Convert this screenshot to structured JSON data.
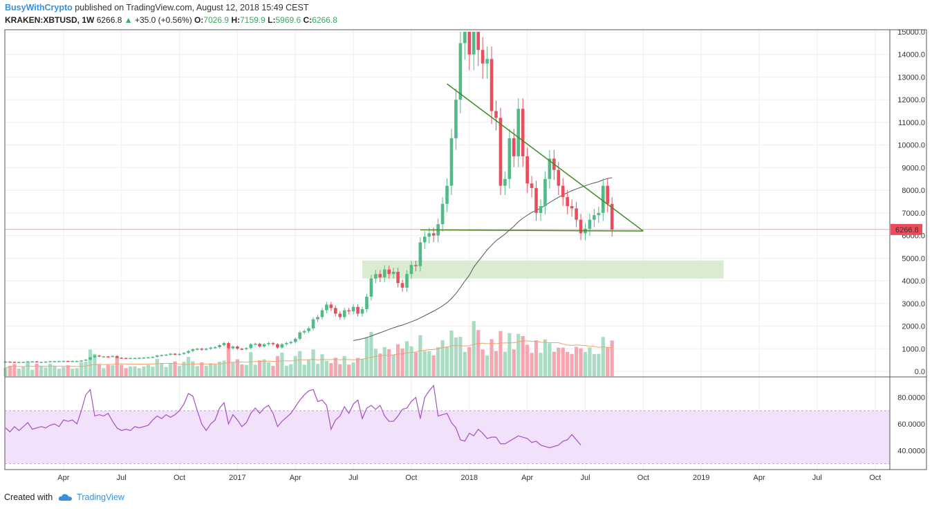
{
  "header": {
    "author": "BusyWithCrypto",
    "published": " published on TradingView.com, August 12, 2018 15:49 CEST",
    "symbol": "KRAKEN:XBTUSD, 1W",
    "last": "6266.8",
    "up_arrow": "▲",
    "change": "+35.0 (+0.56%)",
    "o_label": "O:",
    "o": "7026.9",
    "h_label": "H:",
    "h": "7159.9",
    "l_label": "L:",
    "l": "5969.6",
    "c_label": "C:",
    "c": "6266.8"
  },
  "footer": {
    "created_with": "Created with",
    "brand": "TradingView",
    "brand_icon": "cloud-icon"
  },
  "colors": {
    "up": "#53b987",
    "down": "#eb4d5c",
    "volume_up": "#a9dcc3",
    "volume_down": "#f5a6ae",
    "trendline": "#3c8c1c",
    "zone": "#d9ecd1",
    "rsi": "#a64ec2",
    "rsi_band": "#f2e1fa",
    "ma_long": "#555555",
    "ma_volume": "#f0a070",
    "price_line": "#eb4d5c"
  },
  "chart_data": {
    "type": "candlestick",
    "interval": "1W",
    "y_ticks": [
      "15000.0",
      "14000.0",
      "13000.0",
      "12000.0",
      "11000.0",
      "10000.0",
      "9000.0",
      "8000.0",
      "7000.0",
      "6000.0",
      "5000.0",
      "4000.0",
      "3000.0",
      "2000.0",
      "1000.0",
      "0.0"
    ],
    "y_tick_values": [
      15000,
      14000,
      13000,
      12000,
      11000,
      10000,
      9000,
      8000,
      7000,
      6000,
      5000,
      4000,
      3000,
      2000,
      1000,
      0
    ],
    "ylim": [
      -200,
      15100
    ],
    "last_price_label": "6266.8",
    "last_price": 6266.8,
    "x_tick_labels": [
      "Apr",
      "Jul",
      "Oct",
      "2017",
      "Apr",
      "Jul",
      "Oct",
      "2018",
      "Apr",
      "Jul",
      "Oct",
      "2019",
      "Apr",
      "Jul",
      "Oct"
    ],
    "x_tick_weeks": [
      13,
      26,
      39,
      52,
      65,
      78,
      91,
      104,
      117,
      130,
      143,
      156,
      169,
      182,
      195
    ],
    "candles": [
      [
        6.6,
        4,
        3,
        4,
        0.2
      ],
      [
        6.6,
        4.4,
        4,
        4,
        0.2
      ],
      [
        6.4,
        4.6,
        4.4,
        4,
        0.2
      ],
      [
        6.6,
        4.8,
        4.6,
        4,
        0.2
      ],
      [
        6.6,
        5.0,
        4.8,
        4,
        0.2
      ],
      [
        6.6,
        5.2,
        5.0,
        4,
        0.2
      ],
      [
        6.8,
        5.4,
        5.2,
        4,
        0.2
      ],
      [
        6.8,
        5.8,
        5.4,
        4,
        0.2
      ],
      [
        7.2,
        6.6,
        5.8,
        5,
        0.2
      ],
      [
        7.2,
        6.8,
        6.6,
        6,
        0.2
      ],
      [
        7.2,
        6.8,
        6.8,
        6,
        0.2
      ],
      [
        7.2,
        6.8,
        6.8,
        6,
        0.2
      ],
      [
        7.2,
        6.8,
        6.8,
        6,
        0.2
      ],
      [
        7.2,
        6.8,
        6.8,
        6,
        0.2
      ],
      [
        7.4,
        7.0,
        6.8,
        6,
        0.2
      ],
      [
        7.4,
        7.2,
        7.0,
        6,
        0.2
      ],
      [
        7.6,
        7.4,
        7.2,
        7,
        0.2
      ],
      [
        7.8,
        7.6,
        7.4,
        7,
        0.2
      ],
      [
        8.0,
        7.8,
        7.6,
        7,
        0.2
      ],
      [
        8.4,
        7.8,
        8.0,
        7,
        0.2
      ],
      [
        8.4,
        7.8,
        7.8,
        7,
        0.2
      ],
      [
        8.8,
        7.8,
        8.6,
        7,
        0.2
      ],
      [
        9.4,
        7.8,
        9.4,
        8,
        0.2
      ],
      [
        9.6,
        9.4,
        9.4,
        8,
        0.2
      ],
      [
        9.2,
        9.4,
        9.2,
        8,
        0.2
      ],
      [
        9.0,
        9.0,
        9.0,
        8,
        0.2
      ],
      [
        8.6,
        8.6,
        8.6,
        8,
        0.2
      ],
      [
        8.4,
        8.6,
        8.4,
        8,
        0.2
      ],
      [
        8.4,
        8.2,
        8.4,
        8,
        0.2
      ],
      [
        8.4,
        8.2,
        8.4,
        8,
        0.2
      ],
      [
        8.4,
        8.4,
        8.4,
        8,
        0.2
      ],
      [
        8.6,
        8.4,
        8.4,
        8,
        0.2
      ],
      [
        8.6,
        8.4,
        8.4,
        8,
        0.2
      ],
      [
        8.6,
        8.4,
        8.6,
        8,
        0.2
      ],
      [
        8.8,
        8.6,
        8.8,
        8,
        0.2
      ],
      [
        9.0,
        8.8,
        9.0,
        8,
        0.2
      ],
      [
        9.4,
        9.0,
        9.4,
        9,
        0.2
      ],
      [
        9.8,
        9.4,
        9.6,
        9,
        0.2
      ],
      [
        10.0,
        9.6,
        9.8,
        9,
        0.2
      ],
      [
        10.0,
        9.8,
        9.8,
        9,
        0.2
      ],
      [
        10.6,
        9.8,
        10.2,
        9,
        0.2
      ],
      [
        11.0,
        10.2,
        10.6,
        10,
        0.2
      ],
      [
        11.4,
        10.6,
        11.0,
        10,
        0.2
      ],
      [
        11.8,
        11.0,
        11.2,
        11,
        0.2
      ],
      [
        12.0,
        11.2,
        11.6,
        11,
        0.2
      ],
      [
        12.2,
        11.6,
        12.0,
        11,
        0.2
      ],
      [
        12.6,
        12.0,
        12.4,
        11,
        0.2
      ],
      [
        13.0,
        12.4,
        12.8,
        12,
        0.2
      ],
      [
        13.6,
        12.8,
        13.4,
        12,
        0.2
      ],
      [
        13.8,
        13.4,
        13.6,
        13,
        0.2
      ],
      [
        14.4,
        13.6,
        14.0,
        13,
        0.2
      ],
      [
        14.8,
        14.0,
        14.4,
        14,
        0.2
      ],
      [
        15.0,
        14.4,
        14.4,
        14,
        0.2
      ],
      [
        15.0,
        14.4,
        14.8,
        14,
        0.2
      ],
      [
        15.4,
        14.8,
        15.2,
        14,
        0.2
      ],
      [
        15.6,
        15.2,
        15.4,
        15,
        0.2
      ],
      [
        16.0,
        15.4,
        15.8,
        15,
        0.2
      ]
    ],
    "candles_note_skip": true,
    "volume_ylim": [
      0,
      4000
    ],
    "rsi": {
      "ticks": [
        "80.0000",
        "60.0000",
        "40.0000"
      ],
      "tick_values": [
        80,
        60,
        40
      ],
      "ylim": [
        25,
        95
      ],
      "band": [
        30,
        70
      ]
    }
  }
}
